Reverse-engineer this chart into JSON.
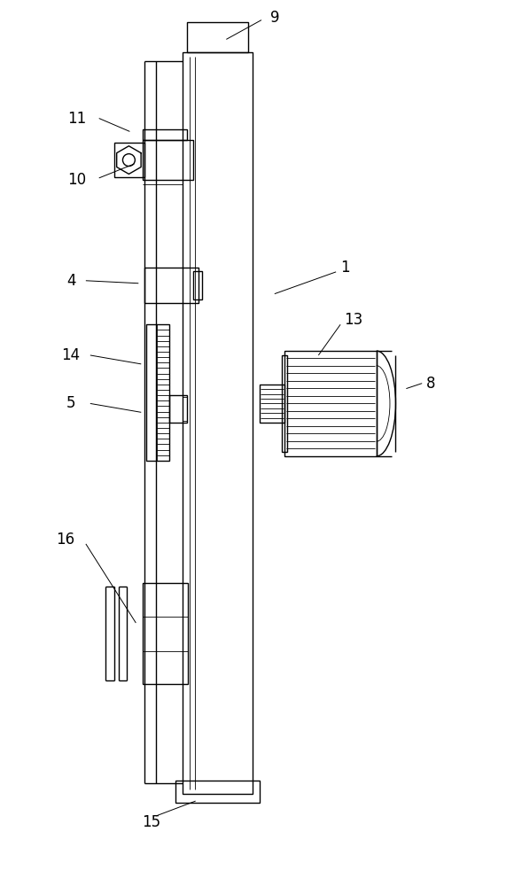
{
  "bg_color": "#ffffff",
  "line_color": "#000000",
  "lw": 1.0,
  "tlw": 0.6,
  "figsize": [
    5.8,
    10.0
  ],
  "dpi": 100
}
